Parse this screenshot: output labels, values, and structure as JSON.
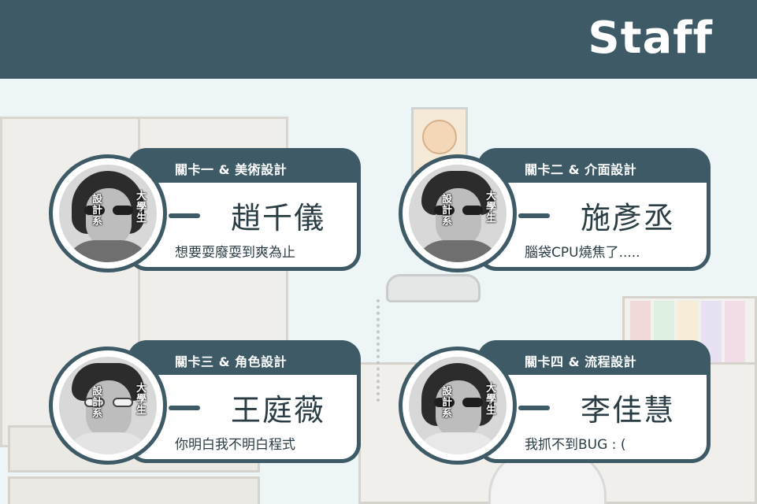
{
  "header": {
    "title": "Staff"
  },
  "staff": [
    {
      "role": "關卡一 & 美術設計",
      "name": "趙千儀",
      "motto": "想要耍廢耍到爽為止",
      "stamp_left": "設計系",
      "stamp_right": "大學生"
    },
    {
      "role": "關卡二 & 介面設計",
      "name": "施彥丞",
      "motto": "腦袋CPU燒焦了.....",
      "stamp_left": "設計系",
      "stamp_right": "大學生"
    },
    {
      "role": "關卡三 & 角色設計",
      "name": "王庭薇",
      "motto": "你明白我不明白程式",
      "stamp_left": "設計系",
      "stamp_right": "大學生"
    },
    {
      "role": "關卡四 & 流程設計",
      "name": "李佳慧",
      "motto": "我抓不到BUG : (",
      "stamp_left": "設計系",
      "stamp_right": "大學生"
    }
  ],
  "colors": {
    "header": "#3d5a66",
    "card_border": "#3d5a66",
    "text": "#2b3d44",
    "background": "#eef5f7"
  },
  "icons": {
    "avatar": "staff-photo"
  }
}
